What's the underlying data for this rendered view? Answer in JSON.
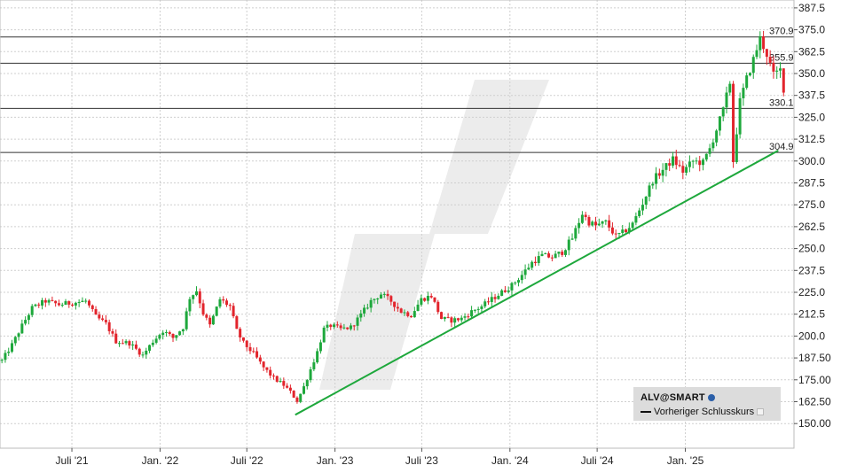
{
  "chart_data": {
    "type": "candlestick",
    "ylim": [
      142,
      392
    ],
    "y_ticks": [
      "387.5",
      "375.0",
      "362.5",
      "350.0",
      "337.5",
      "325.0",
      "312.5",
      "300.0",
      "287.5",
      "275.0",
      "262.5",
      "250.0",
      "237.5",
      "225.0",
      "212.5",
      "200.0",
      "187.50",
      "175.00",
      "162.50",
      "150.00"
    ],
    "x_ticks": [
      {
        "label": "Juli '21",
        "date": "2021-07-01"
      },
      {
        "label": "Jan. '22",
        "date": "2022-01-01"
      },
      {
        "label": "Juli '22",
        "date": "2022-07-01"
      },
      {
        "label": "Jan. '23",
        "date": "2023-01-01"
      },
      {
        "label": "Juli '23",
        "date": "2023-07-01"
      },
      {
        "label": "Jan. '24",
        "date": "2024-01-01"
      },
      {
        "label": "Juli '24",
        "date": "2024-07-01"
      },
      {
        "label": "Jan. '25",
        "date": "2025-01-01"
      }
    ],
    "horizontal_lines": [
      {
        "value": 370.9,
        "label": "370.9"
      },
      {
        "value": 355.9,
        "label": "355.9"
      },
      {
        "value": 330.1,
        "label": "330.1"
      },
      {
        "value": 304.9,
        "label": "304.9"
      }
    ],
    "trendline": {
      "start": [
        "2022-10-10",
        155
      ],
      "end": [
        "2025-07-14",
        306
      ],
      "color": "#1ea83c"
    },
    "price_path": [
      [
        "2021-02-05",
        186
      ],
      [
        "2021-02-26",
        195
      ],
      [
        "2021-03-19",
        206
      ],
      [
        "2021-04-09",
        216
      ],
      [
        "2021-05-07",
        220
      ],
      [
        "2021-06-04",
        218
      ],
      [
        "2021-07-02",
        219
      ],
      [
        "2021-07-30",
        220
      ],
      [
        "2021-08-20",
        211
      ],
      [
        "2021-09-10",
        207
      ],
      [
        "2021-10-01",
        197
      ],
      [
        "2021-10-29",
        196
      ],
      [
        "2021-11-26",
        189
      ],
      [
        "2021-12-17",
        197
      ],
      [
        "2022-01-07",
        203
      ],
      [
        "2022-01-28",
        199
      ],
      [
        "2022-02-18",
        205
      ],
      [
        "2022-03-04",
        222
      ],
      [
        "2022-03-18",
        226
      ],
      [
        "2022-04-01",
        213
      ],
      [
        "2022-04-15",
        206
      ],
      [
        "2022-05-06",
        221
      ],
      [
        "2022-05-27",
        217
      ],
      [
        "2022-06-10",
        203
      ],
      [
        "2022-06-24",
        196
      ],
      [
        "2022-07-15",
        190
      ],
      [
        "2022-08-05",
        182
      ],
      [
        "2022-08-26",
        176
      ],
      [
        "2022-09-16",
        172
      ],
      [
        "2022-09-30",
        168
      ],
      [
        "2022-10-14",
        163
      ],
      [
        "2022-10-28",
        171
      ],
      [
        "2022-11-11",
        181
      ],
      [
        "2022-11-25",
        191
      ],
      [
        "2022-12-09",
        204
      ],
      [
        "2022-12-23",
        206
      ],
      [
        "2023-01-13",
        204
      ],
      [
        "2023-02-03",
        205
      ],
      [
        "2023-02-24",
        212
      ],
      [
        "2023-03-17",
        220
      ],
      [
        "2023-04-07",
        224
      ],
      [
        "2023-04-28",
        220
      ],
      [
        "2023-05-19",
        214
      ],
      [
        "2023-06-09",
        212
      ],
      [
        "2023-06-30",
        221
      ],
      [
        "2023-07-21",
        223
      ],
      [
        "2023-08-11",
        210
      ],
      [
        "2023-09-01",
        209
      ],
      [
        "2023-09-22",
        210
      ],
      [
        "2023-10-13",
        214
      ],
      [
        "2023-11-03",
        217
      ],
      [
        "2023-11-24",
        221
      ],
      [
        "2023-12-15",
        225
      ],
      [
        "2024-01-05",
        229
      ],
      [
        "2024-01-26",
        235
      ],
      [
        "2024-02-16",
        242
      ],
      [
        "2024-03-08",
        246
      ],
      [
        "2024-03-29",
        245
      ],
      [
        "2024-04-19",
        248
      ],
      [
        "2024-05-10",
        256
      ],
      [
        "2024-05-31",
        270
      ],
      [
        "2024-06-14",
        265
      ],
      [
        "2024-06-28",
        263
      ],
      [
        "2024-07-19",
        265
      ],
      [
        "2024-08-09",
        257
      ],
      [
        "2024-08-23",
        259
      ],
      [
        "2024-09-13",
        264
      ],
      [
        "2024-10-04",
        276
      ],
      [
        "2024-10-25",
        289
      ],
      [
        "2024-11-15",
        295
      ],
      [
        "2024-12-06",
        301
      ],
      [
        "2024-12-27",
        294
      ],
      [
        "2025-01-17",
        300
      ],
      [
        "2025-02-07",
        299
      ],
      [
        "2025-02-21",
        307
      ],
      [
        "2025-03-07",
        318
      ],
      [
        "2025-03-21",
        329
      ],
      [
        "2025-04-04",
        345
      ],
      [
        "2025-04-11",
        300
      ],
      [
        "2025-04-25",
        334
      ],
      [
        "2025-05-09",
        347
      ],
      [
        "2025-05-23",
        358
      ],
      [
        "2025-06-06",
        370
      ],
      [
        "2025-06-20",
        361
      ],
      [
        "2025-07-04",
        349
      ],
      [
        "2025-07-18",
        352
      ],
      [
        "2025-07-28",
        337
      ]
    ],
    "legend": {
      "symbol": "ALV@SMART",
      "previous_close_label": "Vorheriger Schlusskurs"
    },
    "colors": {
      "up": "#1ea83c",
      "down": "#e2242c",
      "trendline": "#1ea83c",
      "reference_lines": "#333333",
      "grid": "#cfcfcf",
      "watermark": "#ececec"
    }
  }
}
